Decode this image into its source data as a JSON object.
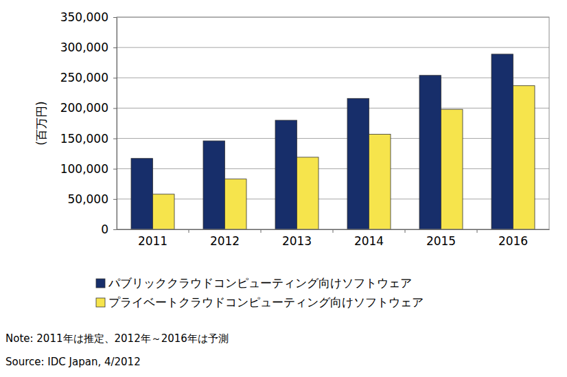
{
  "chart_data": {
    "type": "bar",
    "y_label": "(百万円)",
    "categories": [
      "2011",
      "2012",
      "2013",
      "2014",
      "2015",
      "2016"
    ],
    "series": [
      {
        "name": "パブリッククラウドコンピューティング向けソフトウェア",
        "color": "#172e6a",
        "values": [
          117000,
          146000,
          180000,
          216000,
          254000,
          289000
        ]
      },
      {
        "name": "プライベートクラウドコンピューティング向けソフトウェア",
        "color": "#f6e44c",
        "values": [
          58000,
          83000,
          119000,
          157000,
          198000,
          237000
        ]
      }
    ],
    "ylim": [
      0,
      350000
    ],
    "yticks": [
      0,
      {
        "value": 50000,
        "label": "50,000"
      },
      {
        "value": 100000,
        "label": "100,000"
      },
      {
        "value": 150000,
        "label": "150,000"
      },
      {
        "value": 200000,
        "label": "200,000"
      },
      {
        "value": 250000,
        "label": "250,000"
      },
      {
        "value": 300000,
        "label": "300,000"
      },
      {
        "value": 350000,
        "label": "350,000"
      }
    ],
    "grid": true,
    "legend": "bottom",
    "annotations": [
      "Note: 2011年は推定、2012年～2016年は予測",
      "Source: IDC Japan, 4/2012"
    ]
  }
}
